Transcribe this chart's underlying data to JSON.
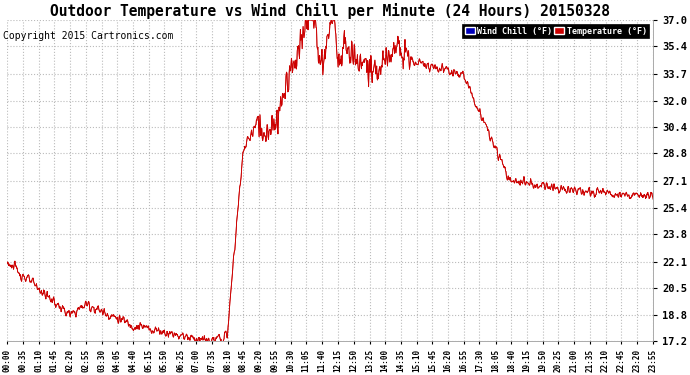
{
  "title": "Outdoor Temperature vs Wind Chill per Minute (24 Hours) 20150328",
  "copyright": "Copyright 2015 Cartronics.com",
  "yticks": [
    17.2,
    18.8,
    20.5,
    22.1,
    23.8,
    25.4,
    27.1,
    28.8,
    30.4,
    32.0,
    33.7,
    35.4,
    37.0
  ],
  "ylim": [
    17.2,
    37.0
  ],
  "xtick_labels": [
    "00:00",
    "00:35",
    "01:10",
    "01:45",
    "02:20",
    "02:55",
    "03:30",
    "04:05",
    "04:40",
    "05:15",
    "05:50",
    "06:25",
    "07:00",
    "07:35",
    "08:10",
    "08:45",
    "09:20",
    "09:55",
    "10:30",
    "11:05",
    "11:40",
    "12:15",
    "12:50",
    "13:25",
    "14:00",
    "14:35",
    "15:10",
    "15:45",
    "16:20",
    "16:55",
    "17:30",
    "18:05",
    "18:40",
    "19:15",
    "19:50",
    "20:25",
    "21:00",
    "21:35",
    "22:10",
    "22:45",
    "23:20",
    "23:55"
  ],
  "legend_wind_chill": "Wind Chill (°F)",
  "legend_temperature": "Temperature (°F)",
  "wind_chill_color": "#cc0000",
  "temperature_color": "#cc0000",
  "legend_wind_chill_bg": "#0000bb",
  "legend_temperature_bg": "#cc0000",
  "background_color": "#ffffff",
  "plot_bg_color": "#ffffff",
  "grid_color": "#bbbbbb",
  "title_fontsize": 10.5,
  "copyright_fontsize": 7,
  "tick_fontsize": 7.5,
  "xtick_fontsize": 5.5
}
